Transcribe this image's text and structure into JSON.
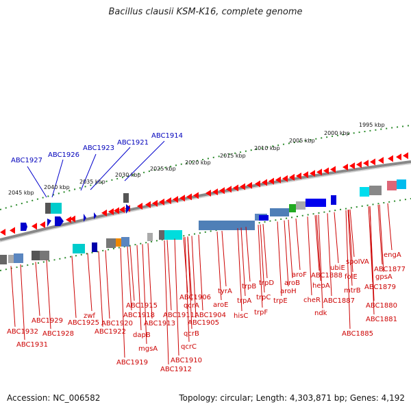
{
  "title": "Bacillus clausii KSM-K16, complete genome",
  "footer": {
    "accession": "Accession: NC_006582",
    "summary": "Topology: circular; Length: 4,303,871 bp; Genes: 4,192"
  },
  "colors": {
    "gene_forward": "#ff0000",
    "gene_label": "#cc0000",
    "highlight_label": "#0000bb",
    "backbone": "#888888",
    "scale": "#2a8a2a"
  },
  "scale_ticks": [
    "2045 kbp",
    "2040 kbp",
    "2035 kbp",
    "2030 kbp",
    "2025 kbp",
    "2020 kbp",
    "2015 kbp",
    "2010 kbp",
    "2005 kbp",
    "2000 kbp",
    "1995 kbp"
  ],
  "highlighted_genes": [
    "ABC1927",
    "ABC1926",
    "ABC1923",
    "ABC1921",
    "ABC1914"
  ],
  "gene_labels": [
    "ABC1932",
    "ABC1931",
    "ABC1929",
    "ABC1928",
    "zwf",
    "ABC1925",
    "ABC1920",
    "ABC1922",
    "ABC1918",
    "ABC1915",
    "dapB",
    "mgsA",
    "ABC1919",
    "ABC1913",
    "ABC1911",
    "qcrB",
    "qcrC",
    "ABC1910",
    "ABC1912",
    "ABC1906",
    "qcrA",
    "ABC1904",
    "ABC1905",
    "aroE",
    "tyrA",
    "hisC",
    "trpA",
    "trpB",
    "trpF",
    "trpC",
    "trpD",
    "trpE",
    "aroH",
    "aroB",
    "aroF",
    "cheR",
    "hepA",
    "ndk",
    "ABC1888",
    "ABC1887",
    "ubiE",
    "mtrB",
    "folE",
    "spoIVA",
    "ABC1885",
    "ABC1879",
    "ABC1880",
    "ABC1881",
    "gpsA",
    "ABC1877",
    "engA"
  ]
}
